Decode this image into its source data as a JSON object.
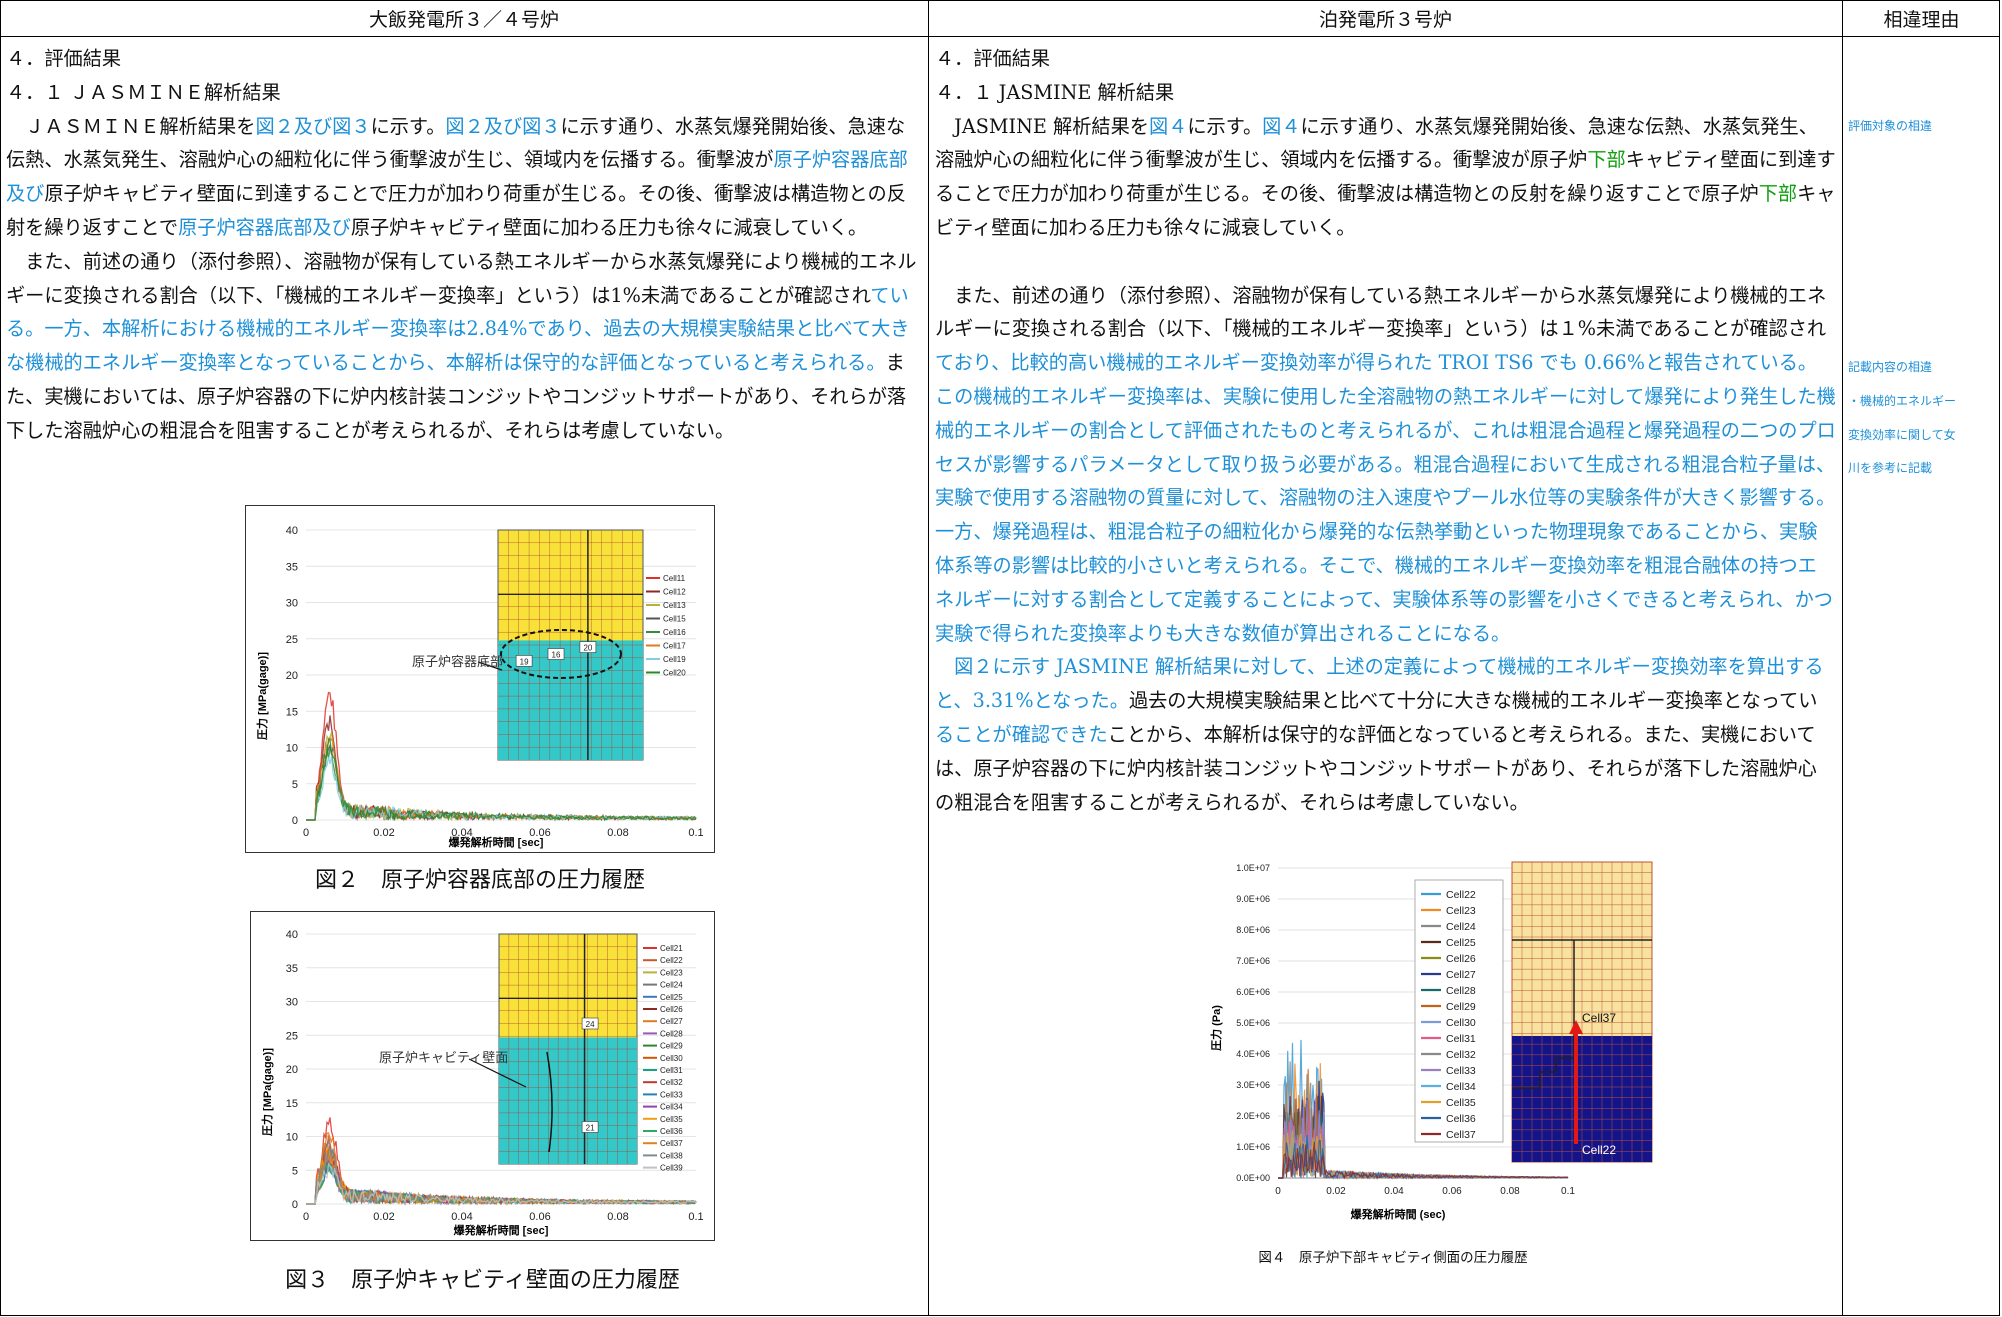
{
  "header": {
    "left_title": "大飯発電所３／４号炉",
    "middle_title": "泊発電所３号炉",
    "right_title": "相違理由"
  },
  "left": {
    "section_heading": "４．評価結果",
    "subsection_heading": "４．１ ＪＡＳＭＩＮＥ解析結果",
    "p1": [
      {
        "t": "　ＪＡＳＭＩＮＥ解析結果を",
        "c": ""
      },
      {
        "t": "図２及び図３",
        "c": "blue"
      },
      {
        "t": "に示す。",
        "c": ""
      },
      {
        "t": "図２及び図３",
        "c": "blue"
      },
      {
        "t": "に示す通り、水蒸気爆発開始後、急速な伝熱、水蒸気発生、溶融炉心の細粒化に伴う衝撃波が生じ、領域内を伝播する。衝撃波が",
        "c": ""
      },
      {
        "t": "原子炉容器底部及び",
        "c": "blue"
      },
      {
        "t": "原子炉キャビティ壁面に到達することで圧力が加わり荷重が生じる。その後、衝撃波は構造物との反射を繰り返すことで",
        "c": ""
      },
      {
        "t": "原子炉容器底部及び",
        "c": "blue"
      },
      {
        "t": "原子炉キャビティ壁面に加わる圧力も徐々に減衰していく。",
        "c": ""
      }
    ],
    "p2": [
      {
        "t": "　また、前述の通り（添付参照）、溶融物が保有している熱エネルギーから水蒸気爆発により機械的エネルギーに変換される割合（以下、「機械的エネルギー変換率」という）は1%未満であることが確認され",
        "c": ""
      },
      {
        "t": "ている。一方、本解析における機械的エネルギー変換率は2.84%であり、過去の大規模実験結果と比べて大きな機械的エネルギー変換率となっていることから、本解析は保守的な評価となっていると考えられる。",
        "c": "blue"
      },
      {
        "t": "また、実機においては、原子炉容器の下に炉内核計装コンジットやコンジットサポートがあり、それらが落下した溶融炉心の粗混合を阻害することが考えられるが、それらは考慮していない。",
        "c": ""
      }
    ],
    "fig2": {
      "callout": "原子炉容器底部",
      "caption": "図２　原子炉容器底部の圧力履歴",
      "xlabel": "爆発解析時間 [sec]",
      "ylabel": "圧力 [MPa(gage)]",
      "xticks": [
        "0",
        "0.02",
        "0.04",
        "0.06",
        "0.08",
        "0.1"
      ],
      "yticks": [
        "0",
        "5",
        "10",
        "15",
        "20",
        "25",
        "30",
        "35",
        "40"
      ],
      "legend": [
        "Cell11",
        "Cell12",
        "Cell13",
        "Cell15",
        "Cell16",
        "Cell17",
        "Cell19",
        "Cell20"
      ],
      "legend_colors": [
        "#e0302a",
        "#8b2a22",
        "#b8b23a",
        "#555555",
        "#3a8a3a",
        "#e07a1e",
        "#80d0e0",
        "#2a8a2a"
      ],
      "inset_cells": [
        "19",
        "16",
        "20"
      ]
    },
    "fig3": {
      "callout": "原子炉キャビティ壁面",
      "caption": "図３　原子炉キャビティ壁面の圧力履歴",
      "xlabel": "爆発解析時間 [sec]",
      "ylabel": "圧力 [MPa(gage)]",
      "xticks": [
        "0",
        "0.02",
        "0.04",
        "0.06",
        "0.08",
        "0.1"
      ],
      "yticks": [
        "0",
        "5",
        "10",
        "15",
        "20",
        "25",
        "30",
        "35",
        "40"
      ],
      "legend": [
        "Cell21",
        "Cell22",
        "Cell23",
        "Cell24",
        "Cell25",
        "Cell26",
        "Cell27",
        "Cell28",
        "Cell29",
        "Cell30",
        "Cell31",
        "Cell32",
        "Cell33",
        "Cell34",
        "Cell35",
        "Cell36",
        "Cell37",
        "Cell38",
        "Cell39"
      ],
      "legend_colors": [
        "#e0302a",
        "#c85a2a",
        "#b8b23a",
        "#777",
        "#3a7abf",
        "#8b2a22",
        "#e07a1e",
        "#9b59b6",
        "#2a8a2a",
        "#d35400",
        "#16a085",
        "#c0392b",
        "#2980b9",
        "#8e44ad",
        "#f39c12",
        "#27ae60",
        "#e67e22",
        "#7f8c8d",
        "#bdc3c7"
      ],
      "inset_cells": [
        "24",
        "21"
      ]
    }
  },
  "middle": {
    "section_heading": "４．評価結果",
    "subsection_heading": "４．１ JASMINE 解析結果",
    "p1": [
      {
        "t": "　JASMINE 解析結果を",
        "c": ""
      },
      {
        "t": "図４",
        "c": "blue"
      },
      {
        "t": "に示す。",
        "c": ""
      },
      {
        "t": "図４",
        "c": "blue"
      },
      {
        "t": "に示す通り、水蒸気爆発開始後、急速な伝熱、水蒸気発生、溶融炉心の細粒化に伴う衝撃波が生じ、領域内を伝播する。衝撃波が原子炉",
        "c": ""
      },
      {
        "t": "下部",
        "c": "green"
      },
      {
        "t": "キャビティ壁面に到達することで圧力が加わり荷重が生じる。その後、衝撃波は構造物との反射を繰り返すことで原子炉",
        "c": ""
      },
      {
        "t": "下部",
        "c": "green"
      },
      {
        "t": "キャビティ壁面に加わる圧力も徐々に減衰していく。",
        "c": ""
      }
    ],
    "p2": [
      {
        "t": "　また、前述の通り（添付参照）、溶融物が保有している熱エネルギーから水蒸気爆発により機械的エネルギーに変換される割合（以下、「機械的エネルギー変換率」という）は１%未満であることが確認され",
        "c": ""
      },
      {
        "t": "ており、比較的高い機械的エネルギー変換効率が得られた TROI TS6 でも 0.66%と報告されている。この機械的エネルギー変換率は、実験に使用した全溶融物の熱エネルギーに対して爆発により発生した機械的エネルギーの割合として評価されたものと考えられるが、これは粗混合過程と爆発過程の二つのプロセスが影響するパラメータとして取り扱う必要がある。粗混合過程において生成される粗混合粒子量は、実験で使用する溶融物の質量に対して、溶融物の注入速度やプール水位等の実験条件が大きく影響する。一方、爆発過程は、粗混合粒子の細粒化から爆発的な伝熱挙動といった物理現象であることから、実験体系等の影響は比較的小さいと考えられる。そこで、機械的エネルギー変換効率を粗混合融体の持つエネルギーに対する割合として定義することによって、実験体系等の影響を小さくできると考えられ、かつ実験で得られた変換率よりも大きな数値が算出されることになる。",
        "c": "blue"
      }
    ],
    "p3": [
      {
        "t": "　図２に示す JASMINE 解析結果に対して、上述の定義によって機械的エネルギー変換効率を算出すると、3.31%となった。",
        "c": "blue"
      },
      {
        "t": "過去の大規模実験結果と比べて十分に大きな機械的エネルギー変換率となってい",
        "c": ""
      },
      {
        "t": "ることが確認できた",
        "c": "blue"
      },
      {
        "t": "ことから、本解析は保守的な評価となっていると考えられる。また、実機においては、原子炉容器の下に炉内核計装コンジットやコンジットサポートがあり、それらが落下した溶融炉心の粗混合を阻害することが考えられるが、それらは考慮していない。",
        "c": ""
      }
    ],
    "fig4": {
      "caption": "図４　原子炉下部キャビティ側面の圧力履歴",
      "xlabel": "爆発解析時間 (sec)",
      "ylabel": "圧力 (Pa)",
      "xticks": [
        "0",
        "0.02",
        "0.04",
        "0.06",
        "0.08",
        "0.1"
      ],
      "yticks": [
        "0.0E+00",
        "1.0E+06",
        "2.0E+06",
        "3.0E+06",
        "4.0E+06",
        "5.0E+06",
        "6.0E+06",
        "7.0E+06",
        "8.0E+06",
        "9.0E+06",
        "1.0E+07"
      ],
      "legend": [
        "Cell22",
        "Cell23",
        "Cell24",
        "Cell25",
        "Cell26",
        "Cell27",
        "Cell28",
        "Cell29",
        "Cell30",
        "Cell31",
        "Cell32",
        "Cell33",
        "Cell34",
        "Cell35",
        "Cell36",
        "Cell37"
      ],
      "legend_colors": [
        "#3b9bd6",
        "#f08a24",
        "#888888",
        "#5a2a1a",
        "#8b8b1a",
        "#2a3a8a",
        "#1a6a6a",
        "#c0621a",
        "#7a9ad8",
        "#e05a8a",
        "#8a8a8a",
        "#9a80c0",
        "#5ab0e0",
        "#e0a030",
        "#2a60a0",
        "#8a2a2a"
      ],
      "inset_cells": [
        "Cell37",
        "Cell22"
      ]
    }
  },
  "right": {
    "reason1": "評価対象の相違",
    "reason2_lines": [
      "記載内容の相違",
      "・機械的エネルギー",
      "変換効率に関して女",
      "川を参考に記載"
    ]
  }
}
